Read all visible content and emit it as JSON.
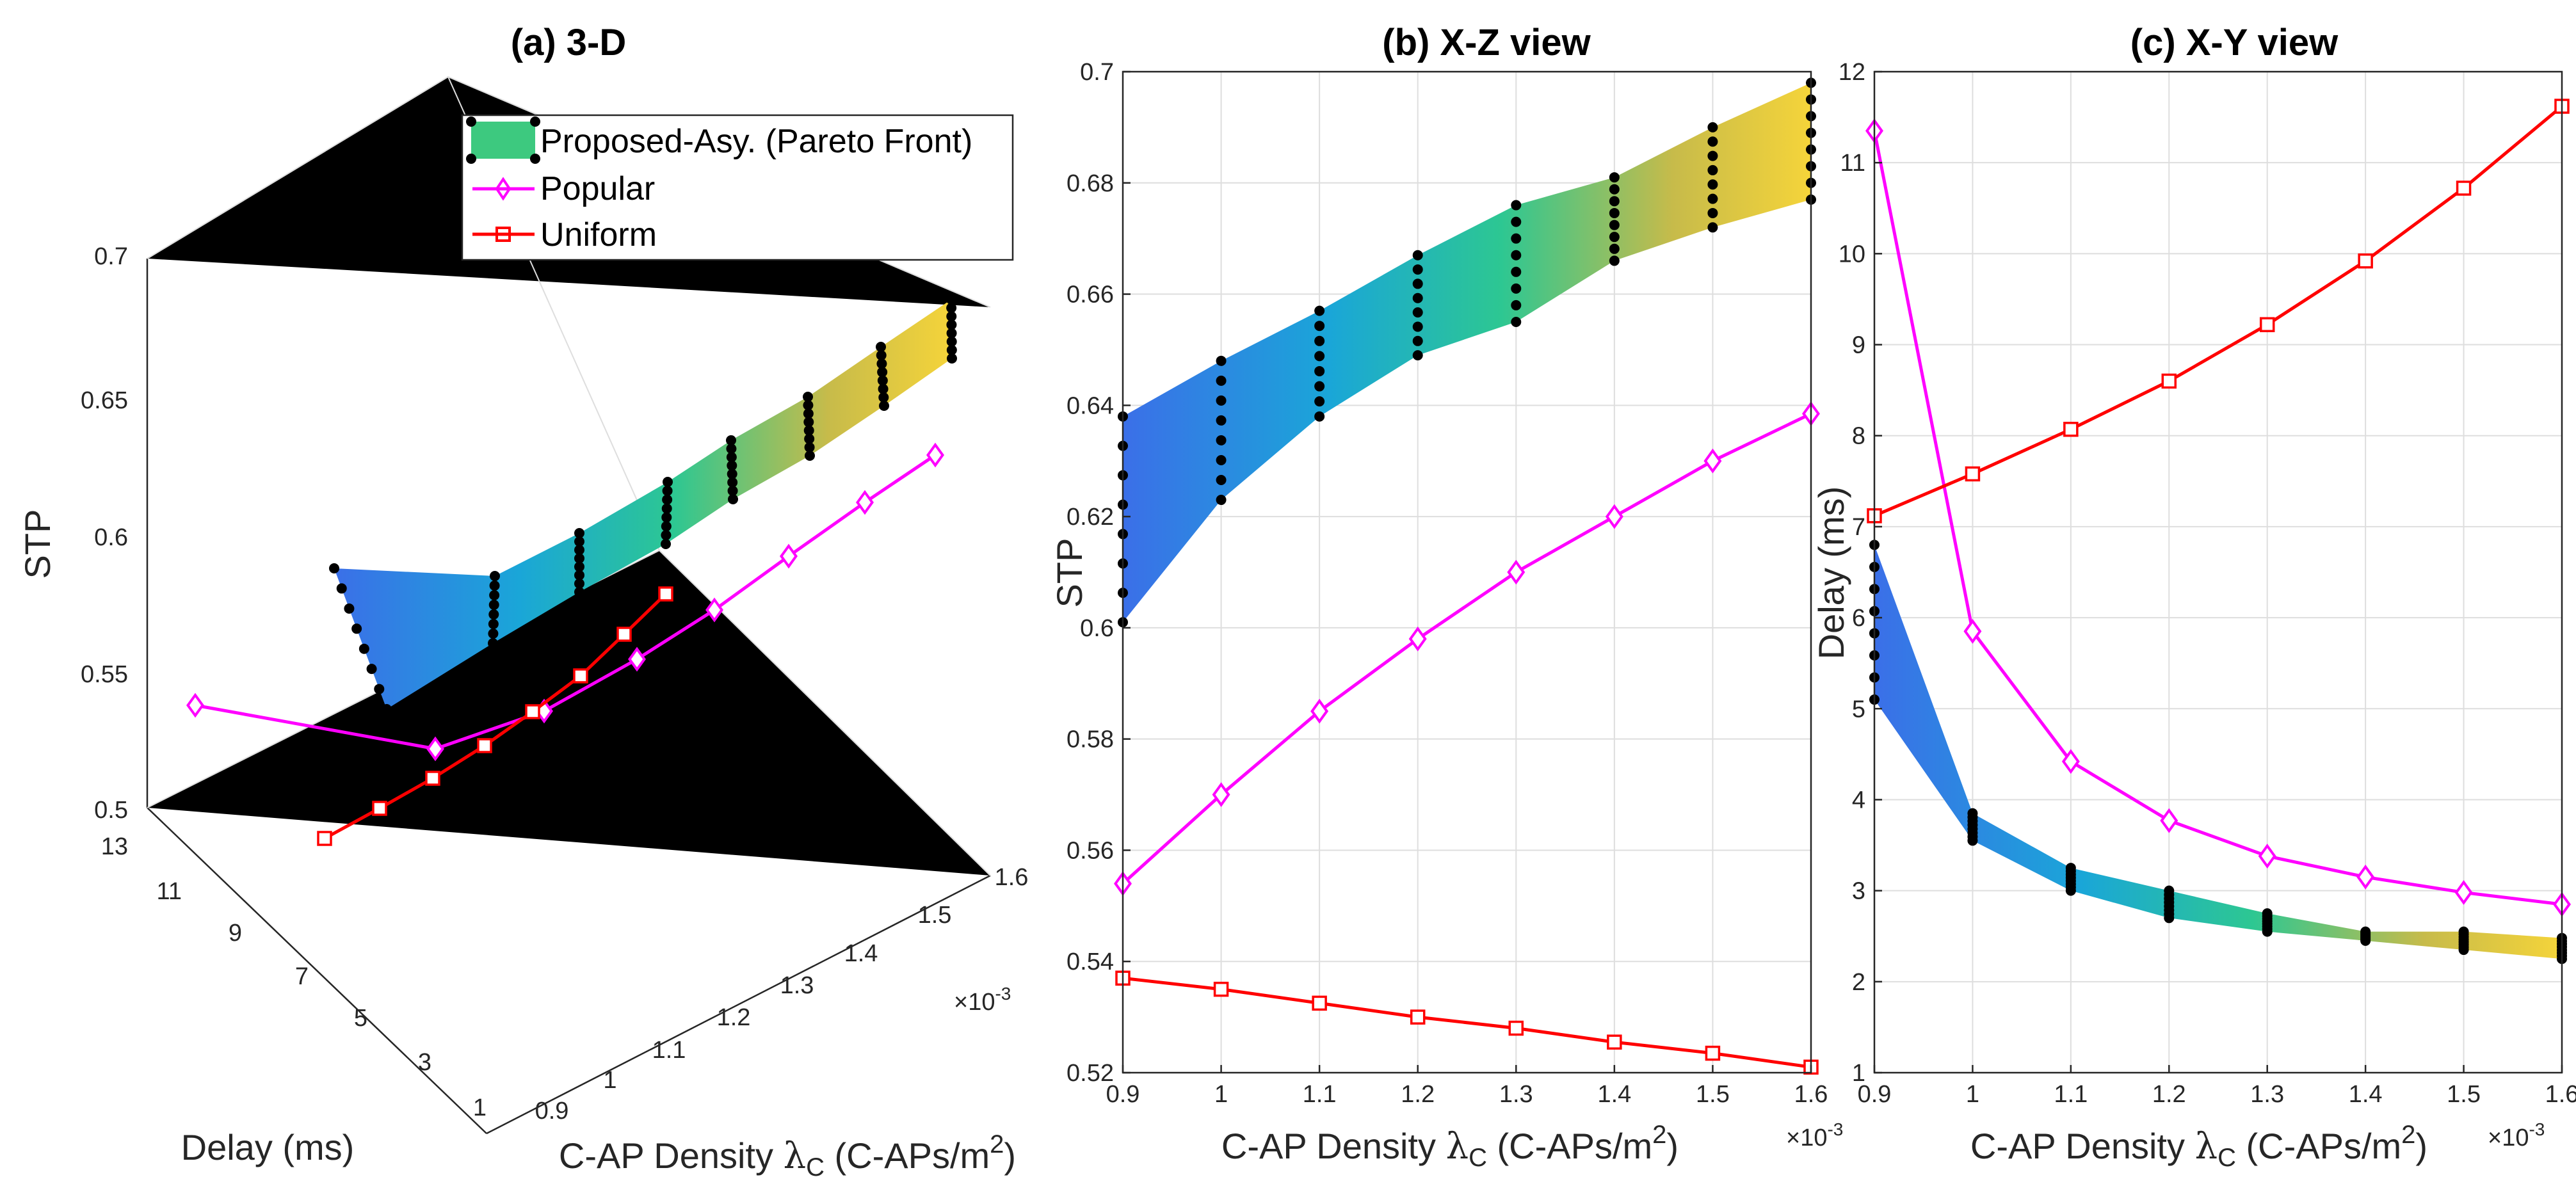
{
  "figure": {
    "title_a": "(a) 3-D",
    "title_b": "(b) X-Z view",
    "title_c": "(c) X-Y view",
    "xlabel_prefix": "C-AP Density ",
    "xlabel_lambda": "λ",
    "xlabel_sub": "C",
    "xlabel_mid": " (C-APs/m",
    "xlabel_sup": "2",
    "xlabel_end": ")",
    "x_multiplier_base": "×10",
    "x_multiplier_exp": "-3",
    "ylabel_a": "Delay (ms)",
    "zlabel_a": "STP",
    "ylabel_b": "STP",
    "ylabel_c": "Delay (ms)"
  },
  "legend": {
    "pareto": "Proposed-Asy. (Pareto Front)",
    "popular": "Popular",
    "uniform": "Uniform"
  },
  "colors": {
    "popular": "#ff00ff",
    "uniform": "#ff0000",
    "pareto_marker": "#000000",
    "legend_patch": "#3dc97f"
  },
  "chart_data": [
    {
      "type": "surface3d",
      "title": "(a) 3-D",
      "xlabel": "C-AP Density λC (C-APs/m2)",
      "ylabel": "Delay (ms)",
      "zlabel": "STP",
      "xlim": [
        0.9,
        1.6
      ],
      "ylim": [
        1,
        13
      ],
      "zlim": [
        0.5,
        0.7
      ],
      "x_ticks": [
        "0.9",
        "1",
        "1.1",
        "1.2",
        "1.3",
        "1.4",
        "1.5",
        "1.6"
      ],
      "y_ticks": [
        "1",
        "3",
        "5",
        "7",
        "9",
        "11",
        "13"
      ],
      "z_ticks": [
        "0.5",
        "0.55",
        "0.6",
        "0.65",
        "0.7"
      ],
      "x_scale_label": "×10-3"
    },
    {
      "type": "line",
      "title": "(b) X-Z view",
      "xlabel": "C-AP Density λC (C-APs/m2)",
      "ylabel": "STP",
      "xlim": [
        0.9,
        1.6
      ],
      "ylim": [
        0.52,
        0.7
      ],
      "x_ticks": [
        "0.9",
        "1",
        "1.1",
        "1.2",
        "1.3",
        "1.4",
        "1.5",
        "1.6"
      ],
      "y_ticks": [
        "0.52",
        "0.54",
        "0.56",
        "0.58",
        "0.6",
        "0.62",
        "0.64",
        "0.66",
        "0.68",
        "0.7"
      ],
      "x": [
        0.9,
        1.0,
        1.1,
        1.2,
        1.3,
        1.4,
        1.5,
        1.6
      ],
      "pareto_stp_min": [
        0.601,
        0.623,
        0.638,
        0.649,
        0.655,
        0.666,
        0.672,
        0.677
      ],
      "pareto_stp_max": [
        0.638,
        0.648,
        0.657,
        0.667,
        0.676,
        0.681,
        0.69,
        0.698
      ],
      "series": [
        {
          "name": "Popular",
          "values": [
            0.554,
            0.57,
            0.585,
            0.598,
            0.61,
            0.62,
            0.63,
            0.6385
          ]
        },
        {
          "name": "Uniform",
          "values": [
            0.537,
            0.535,
            0.5325,
            0.53,
            0.528,
            0.5255,
            0.5235,
            0.521
          ]
        }
      ]
    },
    {
      "type": "line",
      "title": "(c) X-Y view",
      "xlabel": "C-AP Density λC (C-APs/m2)",
      "ylabel": "Delay (ms)",
      "xlim": [
        0.9,
        1.6
      ],
      "ylim": [
        1,
        12
      ],
      "x_ticks": [
        "0.9",
        "1",
        "1.1",
        "1.2",
        "1.3",
        "1.4",
        "1.5",
        "1.6"
      ],
      "y_ticks": [
        "1",
        "2",
        "3",
        "4",
        "5",
        "6",
        "7",
        "8",
        "9",
        "10",
        "11",
        "12"
      ],
      "x": [
        0.9,
        1.0,
        1.1,
        1.2,
        1.3,
        1.4,
        1.5,
        1.6
      ],
      "pareto_delay_min": [
        5.1,
        3.55,
        3.0,
        2.7,
        2.55,
        2.45,
        2.35,
        2.25
      ],
      "pareto_delay_max": [
        6.8,
        3.85,
        3.25,
        3.0,
        2.75,
        2.55,
        2.55,
        2.48
      ],
      "series": [
        {
          "name": "Popular",
          "values": [
            11.35,
            5.85,
            4.42,
            3.77,
            3.38,
            3.15,
            2.98,
            2.85
          ]
        },
        {
          "name": "Uniform",
          "values": [
            7.12,
            7.58,
            8.07,
            8.6,
            9.22,
            9.92,
            10.72,
            11.62
          ]
        }
      ]
    }
  ]
}
